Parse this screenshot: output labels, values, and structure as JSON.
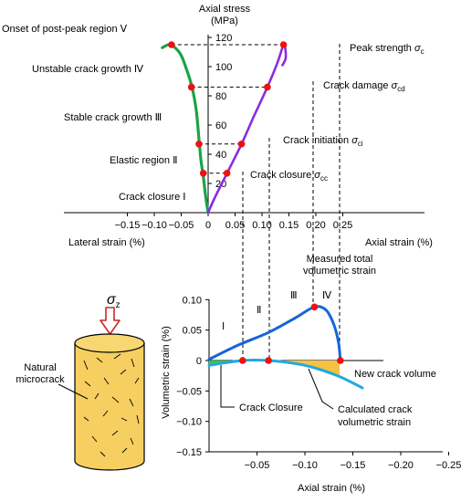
{
  "chart_data": [
    {
      "type": "line",
      "y_axis_title_lines": [
        "Axial stress",
        "(MPa)"
      ],
      "xlabel_left": "Lateral strain (%)",
      "xlabel_right": "Axial strain (%)",
      "x_ticks": [
        "−0.15",
        "−0.10",
        "−0.05",
        "0",
        "0.05",
        "0.10",
        "0.15",
        "0.20",
        "0.25"
      ],
      "x_tick_values": [
        -0.15,
        -0.1,
        -0.05,
        0,
        0.05,
        0.1,
        0.15,
        0.2,
        0.25
      ],
      "y_ticks": [
        "20",
        "40",
        "60",
        "80",
        "100",
        "120"
      ],
      "y_tick_values": [
        20,
        40,
        60,
        80,
        100,
        120
      ],
      "xlim": [
        -0.15,
        0.25
      ],
      "ylim": [
        0,
        120
      ],
      "colors": {
        "lateral": "#1ba34a",
        "axial": "#8a2be2",
        "points": "#ee1111"
      },
      "series": [
        {
          "key": "lateral",
          "x": [
            -0.085,
            -0.07,
            -0.052,
            -0.04,
            -0.03,
            -0.022,
            -0.017,
            -0.013,
            -0.009,
            -0.005,
            0.0
          ],
          "y": [
            113,
            115,
            109,
            98,
            86,
            70,
            50,
            35,
            25,
            12,
            0
          ]
        },
        {
          "key": "axial",
          "x": [
            0.0,
            0.012,
            0.035,
            0.062,
            0.085,
            0.11,
            0.128,
            0.14,
            0.143,
            0.144,
            0.141,
            0.138
          ],
          "y": [
            0,
            10,
            27,
            47,
            66,
            86,
            102,
            115,
            113,
            106,
            103,
            101
          ]
        }
      ],
      "markers": [
        {
          "x": -0.068,
          "y": 115
        },
        {
          "x": 0.14,
          "y": 115
        },
        {
          "x": -0.031,
          "y": 86
        },
        {
          "x": 0.11,
          "y": 86
        },
        {
          "x": -0.017,
          "y": 47
        },
        {
          "x": 0.062,
          "y": 47
        },
        {
          "x": -0.009,
          "y": 27
        },
        {
          "x": 0.035,
          "y": 27
        }
      ],
      "stage_labels": [
        {
          "text": "Onset of post-peak region  Ⅴ"
        },
        {
          "text": "Unstable crack growth Ⅳ"
        },
        {
          "text": "Stable crack growth  Ⅲ"
        },
        {
          "text": "Elastic region  Ⅱ"
        },
        {
          "text": "Crack closure  Ⅰ"
        }
      ],
      "right_labels": [
        {
          "text": "Peak strength ",
          "sigma": "σ",
          "sub": "c"
        },
        {
          "text": "Crack damage ",
          "sigma": "σ",
          "sub": "cd"
        },
        {
          "text": "Crack initiation ",
          "sigma": "σ",
          "sub": "ci"
        },
        {
          "text": "Crack closure ",
          "sigma": "σ",
          "sub": "cc"
        }
      ]
    },
    {
      "type": "line",
      "ylabel": "Volumetric strain (%)",
      "xlabel": "Axial strain (%)",
      "x_ticks": [
        "−0.05",
        "−0.10",
        "−0.15",
        "−0.20",
        "−0.25"
      ],
      "x_tick_values": [
        -0.05,
        -0.1,
        -0.15,
        -0.2,
        -0.25
      ],
      "y_ticks": [
        "0.10",
        "0.05",
        "0",
        "−0.05",
        "−0.10",
        "−0.15"
      ],
      "y_tick_values": [
        0.1,
        0.05,
        0,
        -0.05,
        -0.1,
        -0.15
      ],
      "xlim": [
        0,
        -0.25
      ],
      "ylim": [
        -0.15,
        0.1
      ],
      "colors": {
        "total": "#1565d8",
        "crack": "#21a9e1",
        "closure_fill": "#2ecc40",
        "crack_fill": "#f5c242"
      },
      "series": [
        {
          "key": "total",
          "x": [
            0.0,
            -0.03,
            -0.062,
            -0.09,
            -0.11,
            -0.122,
            -0.13,
            -0.135,
            -0.137
          ],
          "y": [
            0.002,
            0.025,
            0.046,
            0.07,
            0.088,
            0.083,
            0.06,
            0.03,
            0.0
          ]
        },
        {
          "key": "crack",
          "x": [
            0.0,
            -0.035,
            -0.062,
            -0.09,
            -0.11,
            -0.137,
            -0.16
          ],
          "y": [
            -0.008,
            0.0,
            0.0,
            -0.005,
            -0.012,
            -0.027,
            -0.045
          ]
        }
      ],
      "markers": [
        {
          "x": -0.035,
          "y": 0
        },
        {
          "x": -0.062,
          "y": 0
        },
        {
          "x": -0.11,
          "y": 0.088
        },
        {
          "x": -0.137,
          "y": 0
        }
      ],
      "region_labels": [
        "Ⅰ",
        "Ⅱ",
        "Ⅲ",
        "Ⅳ"
      ],
      "annotations": {
        "measured": [
          "Measured total",
          "volumetric strain"
        ],
        "new_crack": "New crack volume",
        "crack_closure": "Crack Closure",
        "calculated": [
          "Calculated crack",
          "volumetric strain"
        ]
      }
    }
  ],
  "specimen": {
    "sigma": "σ",
    "sub": "z",
    "label_lines": [
      "Natural",
      "microcrack"
    ]
  }
}
